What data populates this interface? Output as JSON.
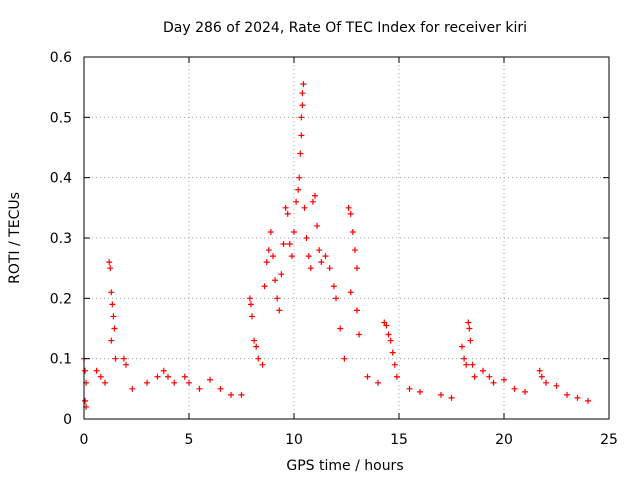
{
  "chart_data": {
    "type": "scatter",
    "title": "Day 286 of 2024, Rate Of TEC Index for receiver kiri",
    "xlabel": "GPS time / hours",
    "ylabel": "ROTI / TECUs",
    "xlim": [
      0,
      25
    ],
    "ylim": [
      0,
      0.6
    ],
    "xticks": [
      "0",
      "5",
      "10",
      "15",
      "20",
      "25"
    ],
    "yticks": [
      "0",
      "0.1",
      "0.2",
      "0.3",
      "0.4",
      "0.5",
      "0.6"
    ],
    "grid": true,
    "marker": "plus",
    "color": "#ff0000",
    "series": [
      {
        "points": [
          [
            0.0,
            0.1
          ],
          [
            0.05,
            0.08
          ],
          [
            0.1,
            0.06
          ],
          [
            0.05,
            0.03
          ],
          [
            0.1,
            0.02
          ],
          [
            0.6,
            0.08
          ],
          [
            0.8,
            0.07
          ],
          [
            1.0,
            0.06
          ],
          [
            1.2,
            0.26
          ],
          [
            1.25,
            0.25
          ],
          [
            1.3,
            0.21
          ],
          [
            1.35,
            0.19
          ],
          [
            1.4,
            0.17
          ],
          [
            1.45,
            0.15
          ],
          [
            1.3,
            0.13
          ],
          [
            1.5,
            0.1
          ],
          [
            1.9,
            0.1
          ],
          [
            2.0,
            0.09
          ],
          [
            2.3,
            0.05
          ],
          [
            3.0,
            0.06
          ],
          [
            3.5,
            0.07
          ],
          [
            3.8,
            0.08
          ],
          [
            4.0,
            0.07
          ],
          [
            4.3,
            0.06
          ],
          [
            4.8,
            0.07
          ],
          [
            5.0,
            0.06
          ],
          [
            5.5,
            0.05
          ],
          [
            6.0,
            0.065
          ],
          [
            6.5,
            0.05
          ],
          [
            7.0,
            0.04
          ],
          [
            7.5,
            0.04
          ],
          [
            7.9,
            0.2
          ],
          [
            7.95,
            0.19
          ],
          [
            8.0,
            0.17
          ],
          [
            8.1,
            0.13
          ],
          [
            8.2,
            0.12
          ],
          [
            8.3,
            0.1
          ],
          [
            8.5,
            0.09
          ],
          [
            8.6,
            0.22
          ],
          [
            8.7,
            0.26
          ],
          [
            8.8,
            0.28
          ],
          [
            8.9,
            0.31
          ],
          [
            9.0,
            0.27
          ],
          [
            9.1,
            0.23
          ],
          [
            9.2,
            0.2
          ],
          [
            9.3,
            0.18
          ],
          [
            9.4,
            0.24
          ],
          [
            9.5,
            0.29
          ],
          [
            9.6,
            0.35
          ],
          [
            9.7,
            0.34
          ],
          [
            9.8,
            0.29
          ],
          [
            9.9,
            0.27
          ],
          [
            10.0,
            0.31
          ],
          [
            10.1,
            0.36
          ],
          [
            10.2,
            0.38
          ],
          [
            10.25,
            0.4
          ],
          [
            10.3,
            0.44
          ],
          [
            10.35,
            0.47
          ],
          [
            10.35,
            0.5
          ],
          [
            10.4,
            0.52
          ],
          [
            10.4,
            0.54
          ],
          [
            10.45,
            0.555
          ],
          [
            10.5,
            0.35
          ],
          [
            10.6,
            0.3
          ],
          [
            10.7,
            0.27
          ],
          [
            10.8,
            0.25
          ],
          [
            10.9,
            0.36
          ],
          [
            11.0,
            0.37
          ],
          [
            11.1,
            0.32
          ],
          [
            11.2,
            0.28
          ],
          [
            11.3,
            0.26
          ],
          [
            11.5,
            0.27
          ],
          [
            11.7,
            0.25
          ],
          [
            11.9,
            0.22
          ],
          [
            12.0,
            0.2
          ],
          [
            12.2,
            0.15
          ],
          [
            12.4,
            0.1
          ],
          [
            12.6,
            0.35
          ],
          [
            12.7,
            0.34
          ],
          [
            12.8,
            0.31
          ],
          [
            12.9,
            0.28
          ],
          [
            13.0,
            0.25
          ],
          [
            12.7,
            0.21
          ],
          [
            13.0,
            0.18
          ],
          [
            13.1,
            0.14
          ],
          [
            13.5,
            0.07
          ],
          [
            14.0,
            0.06
          ],
          [
            14.3,
            0.16
          ],
          [
            14.4,
            0.155
          ],
          [
            14.5,
            0.14
          ],
          [
            14.6,
            0.13
          ],
          [
            14.7,
            0.11
          ],
          [
            14.8,
            0.09
          ],
          [
            14.9,
            0.07
          ],
          [
            15.5,
            0.05
          ],
          [
            16.0,
            0.045
          ],
          [
            17.0,
            0.04
          ],
          [
            17.5,
            0.035
          ],
          [
            18.0,
            0.12
          ],
          [
            18.1,
            0.1
          ],
          [
            18.2,
            0.09
          ],
          [
            18.3,
            0.16
          ],
          [
            18.35,
            0.15
          ],
          [
            18.4,
            0.13
          ],
          [
            18.5,
            0.09
          ],
          [
            18.6,
            0.07
          ],
          [
            19.0,
            0.08
          ],
          [
            19.3,
            0.07
          ],
          [
            19.5,
            0.06
          ],
          [
            20.0,
            0.065
          ],
          [
            20.5,
            0.05
          ],
          [
            21.0,
            0.045
          ],
          [
            21.7,
            0.08
          ],
          [
            21.8,
            0.07
          ],
          [
            22.0,
            0.06
          ],
          [
            22.5,
            0.055
          ],
          [
            23.0,
            0.04
          ],
          [
            23.5,
            0.035
          ],
          [
            24.0,
            0.03
          ]
        ]
      }
    ]
  }
}
